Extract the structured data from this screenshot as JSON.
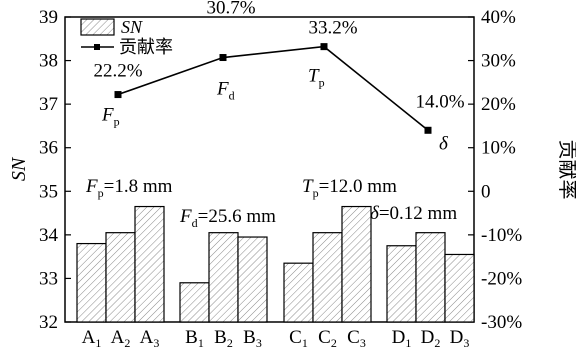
{
  "chart_data": {
    "type": "bar",
    "title": "",
    "groups": [
      {
        "name": "A",
        "categories": [
          {
            "base": "A",
            "sub": "1"
          },
          {
            "base": "A",
            "sub": "2"
          },
          {
            "base": "A",
            "sub": "3"
          }
        ],
        "values": [
          33.8,
          34.05,
          34.65
        ]
      },
      {
        "name": "B",
        "categories": [
          {
            "base": "B",
            "sub": "1"
          },
          {
            "base": "B",
            "sub": "2"
          },
          {
            "base": "B",
            "sub": "3"
          }
        ],
        "values": [
          32.9,
          34.05,
          33.95
        ]
      },
      {
        "name": "C",
        "categories": [
          {
            "base": "C",
            "sub": "1"
          },
          {
            "base": "C",
            "sub": "2"
          },
          {
            "base": "C",
            "sub": "3"
          }
        ],
        "values": [
          33.35,
          34.05,
          34.65
        ]
      },
      {
        "name": "D",
        "categories": [
          {
            "base": "D",
            "sub": "1"
          },
          {
            "base": "D",
            "sub": "2"
          },
          {
            "base": "D",
            "sub": "3"
          }
        ],
        "values": [
          33.75,
          34.05,
          33.55
        ]
      }
    ],
    "bar_series_name": "SN",
    "line_series": {
      "name": "贡献率",
      "points": [
        {
          "label_base": "F",
          "label_sub": "p",
          "value": 22.2,
          "text": "22.2%"
        },
        {
          "label_base": "F",
          "label_sub": "d",
          "value": 30.7,
          "text": "30.7%"
        },
        {
          "label_base": "T",
          "label_sub": "p",
          "value": 33.2,
          "text": "33.2%"
        },
        {
          "label_base": "δ",
          "label_sub": "",
          "value": 14.0,
          "text": "14.0%"
        }
      ]
    },
    "ylabel_left": "SN",
    "ylabel_right": "贡献率",
    "ylim_left": [
      32,
      39
    ],
    "yticks_left": [
      32,
      33,
      34,
      35,
      36,
      37,
      38,
      39
    ],
    "ylim_right": [
      -30,
      40
    ],
    "yticks_right": [
      "-30%",
      "-20%",
      "-10%",
      "0",
      "10%",
      "20%",
      "30%",
      "40%"
    ],
    "optimal_annotations": [
      {
        "base": "F",
        "sub": "p",
        "rest": "=1.8 mm"
      },
      {
        "base": "F",
        "sub": "d",
        "rest": "=25.6 mm"
      },
      {
        "base": "T",
        "sub": "p",
        "rest": "=12.0 mm"
      },
      {
        "base": "δ",
        "sub": "",
        "rest": "=0.12 mm"
      }
    ],
    "legend": {
      "position": "top-left",
      "entries": [
        "SN",
        "贡献率"
      ]
    },
    "grid": false
  }
}
